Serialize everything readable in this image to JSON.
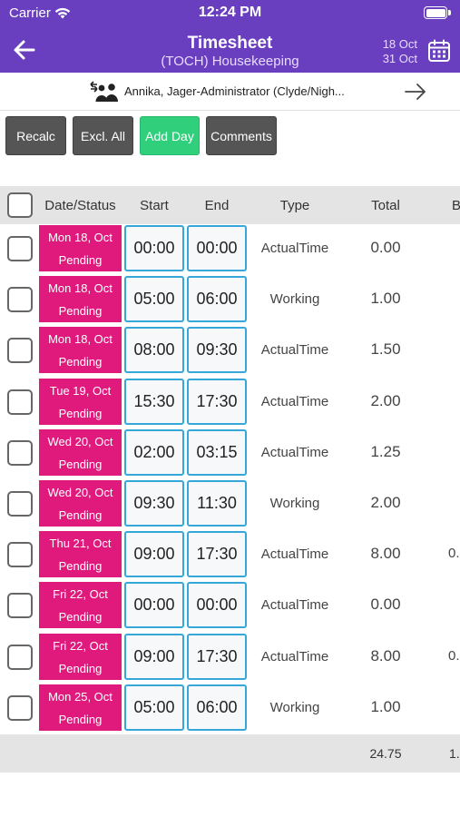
{
  "status_bar": {
    "carrier": "Carrier",
    "time": "12:24 PM"
  },
  "header": {
    "title": "Timesheet",
    "subtitle": "(TOCH) Housekeeping",
    "date_from": "18 Oct",
    "date_to": "31 Oct",
    "bg_color": "#6a3fbf"
  },
  "employee": {
    "name": "Annika, Jager-Administrator (Clyde/Nigh..."
  },
  "actions": {
    "recalc": "Recalc",
    "exclude_all": "Excl. All",
    "add_day": "Add Day",
    "comments": "Comments"
  },
  "table": {
    "columns": {
      "date_status": "Date/Status",
      "start": "Start",
      "end": "End",
      "type": "Type",
      "total": "Total",
      "extra": "B"
    },
    "rows": [
      {
        "date": "Mon 18, Oct",
        "status": "Pending",
        "start": "00:00",
        "end": "00:00",
        "type": "ActualTime",
        "total": "0.00",
        "extra": ""
      },
      {
        "date": "Mon 18, Oct",
        "status": "Pending",
        "start": "05:00",
        "end": "06:00",
        "type": "Working",
        "total": "1.00",
        "extra": ""
      },
      {
        "date": "Mon 18, Oct",
        "status": "Pending",
        "start": "08:00",
        "end": "09:30",
        "type": "ActualTime",
        "total": "1.50",
        "extra": ""
      },
      {
        "date": "Tue 19, Oct",
        "status": "Pending",
        "start": "15:30",
        "end": "17:30",
        "type": "ActualTime",
        "total": "2.00",
        "extra": ""
      },
      {
        "date": "Wed 20, Oct",
        "status": "Pending",
        "start": "02:00",
        "end": "03:15",
        "type": "ActualTime",
        "total": "1.25",
        "extra": ""
      },
      {
        "date": "Wed 20, Oct",
        "status": "Pending",
        "start": "09:30",
        "end": "11:30",
        "type": "Working",
        "total": "2.00",
        "extra": ""
      },
      {
        "date": "Thu 21, Oct",
        "status": "Pending",
        "start": "09:00",
        "end": "17:30",
        "type": "ActualTime",
        "total": "8.00",
        "extra": "0."
      },
      {
        "date": "Fri 22, Oct",
        "status": "Pending",
        "start": "00:00",
        "end": "00:00",
        "type": "ActualTime",
        "total": "0.00",
        "extra": ""
      },
      {
        "date": "Fri 22, Oct",
        "status": "Pending",
        "start": "09:00",
        "end": "17:30",
        "type": "ActualTime",
        "total": "8.00",
        "extra": "0."
      },
      {
        "date": "Mon 25, Oct",
        "status": "Pending",
        "start": "05:00",
        "end": "06:00",
        "type": "Working",
        "total": "1.00",
        "extra": ""
      }
    ],
    "footer": {
      "total": "24.75",
      "extra": "1."
    }
  },
  "colors": {
    "pending": "#e0197d",
    "time_border": "#35a8d9",
    "add_day": "#2fcf7c",
    "button": "#555555"
  },
  "icons": {
    "back": "arrow-left-icon",
    "calendar": "calendar-icon",
    "employee": "people-swap-icon",
    "next": "arrow-right-icon",
    "wifi": "wifi-icon",
    "battery": "battery-icon"
  }
}
